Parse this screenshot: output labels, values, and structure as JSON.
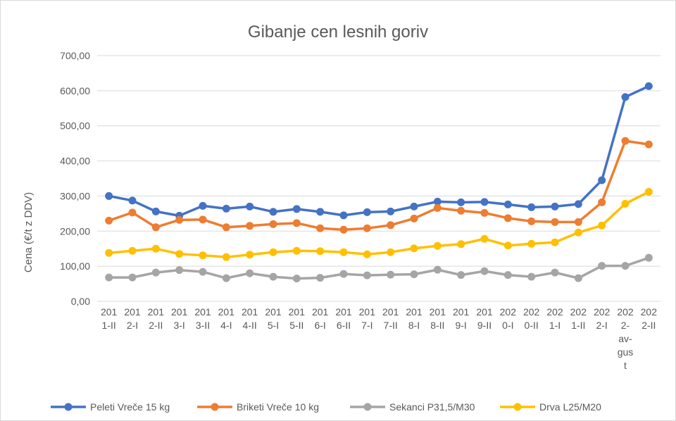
{
  "chart_data": {
    "type": "line",
    "title": "Gibanje cen lesnih goriv",
    "xlabel": "",
    "ylabel": "Cena (€/t z DDV)",
    "ylim": [
      0,
      700
    ],
    "yticks": [
      "0,00",
      "100,00",
      "200,00",
      "300,00",
      "400,00",
      "500,00",
      "600,00",
      "700,00"
    ],
    "grid": true,
    "legend": "bottom",
    "categories": [
      "2011-II",
      "2012-I",
      "2012-II",
      "2013-I",
      "2013-II",
      "2014-I",
      "2014-II",
      "2015-I",
      "2015-II",
      "2016-I",
      "2016-II",
      "2017-I",
      "2017-II",
      "2018-I",
      "2018-II",
      "2019-I",
      "2019-II",
      "2020-I",
      "2020-II",
      "2021-I",
      "2021-II",
      "2022-I",
      "2022-avgust",
      "2022-II"
    ],
    "series": [
      {
        "name": "Peleti Vreče 15 kg",
        "color": "#4472C4",
        "values": [
          300,
          287,
          256,
          244,
          272,
          264,
          270,
          255,
          263,
          255,
          245,
          254,
          256,
          270,
          284,
          282,
          283,
          276,
          268,
          270,
          277,
          345,
          582,
          613
        ]
      },
      {
        "name": "Briketi Vreče 10 kg",
        "color": "#ED7D31",
        "values": [
          230,
          253,
          211,
          232,
          233,
          211,
          215,
          220,
          223,
          208,
          204,
          208,
          217,
          236,
          266,
          258,
          252,
          237,
          228,
          226,
          226,
          282,
          457,
          447
        ]
      },
      {
        "name": "Sekanci P31,5/M30",
        "color": "#A5A5A5",
        "values": [
          68,
          68,
          82,
          89,
          84,
          66,
          80,
          70,
          65,
          67,
          78,
          74,
          76,
          77,
          90,
          75,
          86,
          75,
          70,
          82,
          66,
          101,
          101,
          124
        ]
      },
      {
        "name": "Drva L25/M20",
        "color": "#FFC000",
        "values": [
          138,
          144,
          150,
          135,
          131,
          126,
          133,
          140,
          144,
          143,
          140,
          134,
          140,
          151,
          158,
          163,
          178,
          159,
          164,
          168,
          196,
          216,
          278,
          312
        ]
      }
    ]
  }
}
